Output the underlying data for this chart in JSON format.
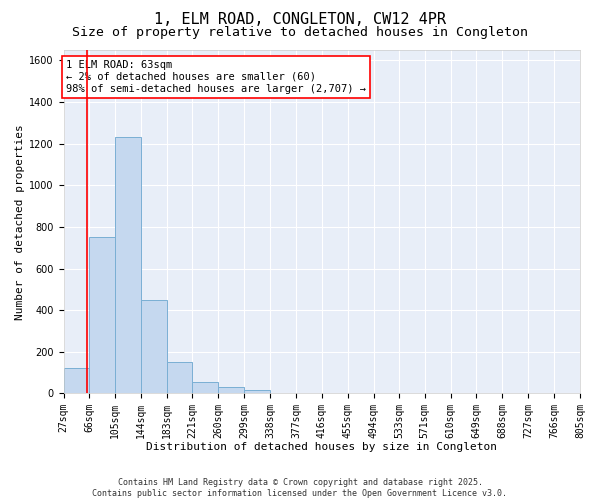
{
  "title": "1, ELM ROAD, CONGLETON, CW12 4PR",
  "subtitle": "Size of property relative to detached houses in Congleton",
  "xlabel": "Distribution of detached houses by size in Congleton",
  "ylabel": "Number of detached properties",
  "bin_edges": [
    27,
    66,
    105,
    144,
    183,
    221,
    260,
    299,
    338,
    377,
    416,
    455,
    494,
    533,
    571,
    610,
    649,
    688,
    727,
    766,
    805
  ],
  "bar_heights": [
    120,
    750,
    1230,
    450,
    150,
    55,
    30,
    15,
    0,
    0,
    0,
    0,
    0,
    0,
    0,
    0,
    0,
    0,
    0,
    0
  ],
  "bar_color": "#c5d8ef",
  "bar_edge_color": "#7aafd4",
  "red_line_x": 63,
  "annotation_text": "1 ELM ROAD: 63sqm\n← 2% of detached houses are smaller (60)\n98% of semi-detached houses are larger (2,707) →",
  "ylim": [
    0,
    1650
  ],
  "yticks": [
    0,
    200,
    400,
    600,
    800,
    1000,
    1200,
    1400,
    1600
  ],
  "bg_color": "#e8eef8",
  "grid_color": "#ffffff",
  "footer_text": "Contains HM Land Registry data © Crown copyright and database right 2025.\nContains public sector information licensed under the Open Government Licence v3.0.",
  "title_fontsize": 11,
  "subtitle_fontsize": 9.5,
  "xlabel_fontsize": 8,
  "ylabel_fontsize": 8,
  "tick_fontsize": 7,
  "annotation_fontsize": 7.5,
  "footer_fontsize": 6
}
